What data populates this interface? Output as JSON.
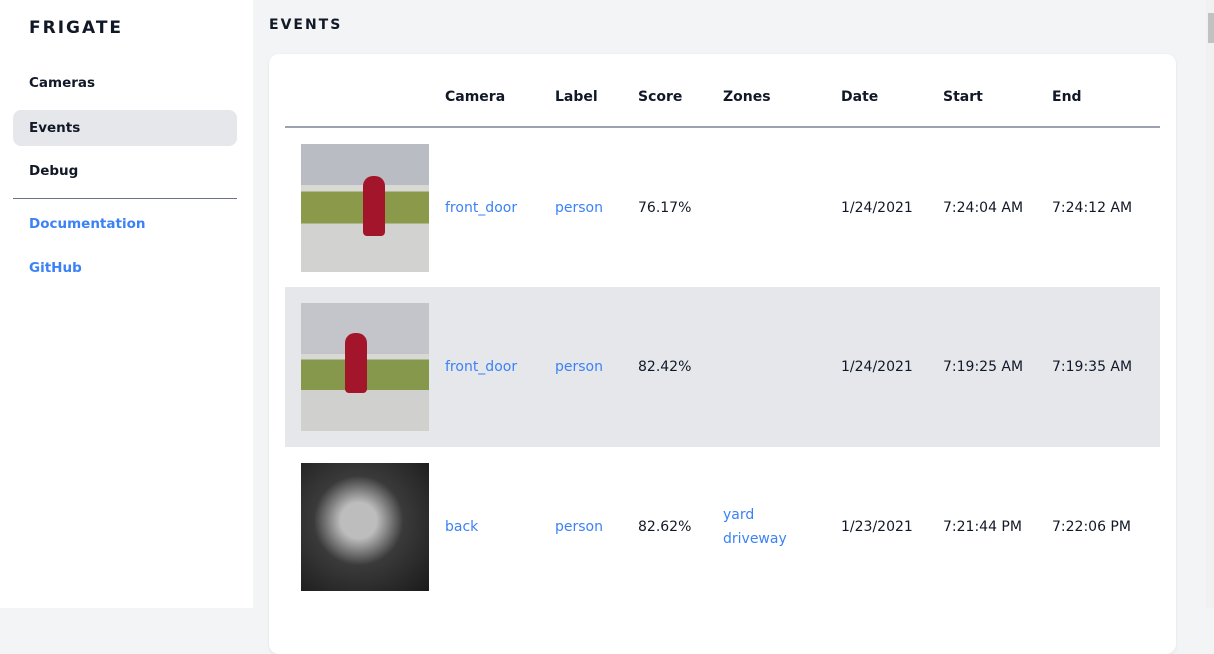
{
  "sidebar": {
    "logo": "FRIGATE",
    "items": [
      {
        "label": "Cameras"
      },
      {
        "label": "Events"
      },
      {
        "label": "Debug"
      }
    ],
    "links": [
      {
        "label": "Documentation"
      },
      {
        "label": "GitHub"
      }
    ]
  },
  "page": {
    "title": "EVENTS"
  },
  "table": {
    "headers": [
      "",
      "Camera",
      "Label",
      "Score",
      "Zones",
      "Date",
      "Start",
      "End"
    ],
    "rows": [
      {
        "camera": "front_door",
        "label": "person",
        "score": "76.17%",
        "zones": [
          "",
          ""
        ],
        "date": "1/24/2021",
        "start": "7:24:04 AM",
        "end": "7:24:12 AM"
      },
      {
        "camera": "front_door",
        "label": "person",
        "score": "82.42%",
        "zones": [
          "",
          ""
        ],
        "date": "1/24/2021",
        "start": "7:19:25 AM",
        "end": "7:19:35 AM"
      },
      {
        "camera": "back",
        "label": "person",
        "score": "82.62%",
        "zones": [
          "yard",
          "driveway"
        ],
        "date": "1/23/2021",
        "start": "7:21:44 PM",
        "end": "7:22:06 PM"
      }
    ]
  },
  "colors": {
    "accent": "#3b82f6",
    "active_bg": "#e5e7eb"
  }
}
